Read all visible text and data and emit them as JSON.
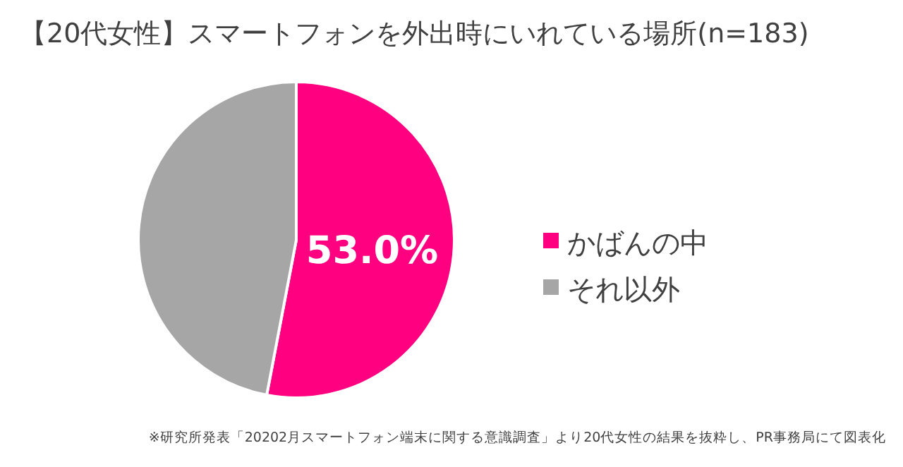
{
  "chart_data": {
    "type": "pie",
    "title": "【20代女性】スマートフォンを外出時にいれている場所(n=183)",
    "categories": [
      "かばんの中",
      "それ以外"
    ],
    "values": [
      53.0,
      47.0
    ],
    "colors": [
      "#ff0080",
      "#a6a6a6"
    ],
    "value_labels": [
      "53.0%",
      null
    ],
    "legend": "right",
    "annotations": [
      "※研究所発表「20202月スマートフォン端末に関する意識調査」より20代女性の結果を抜粋し、PR事務局にて図表化"
    ]
  }
}
